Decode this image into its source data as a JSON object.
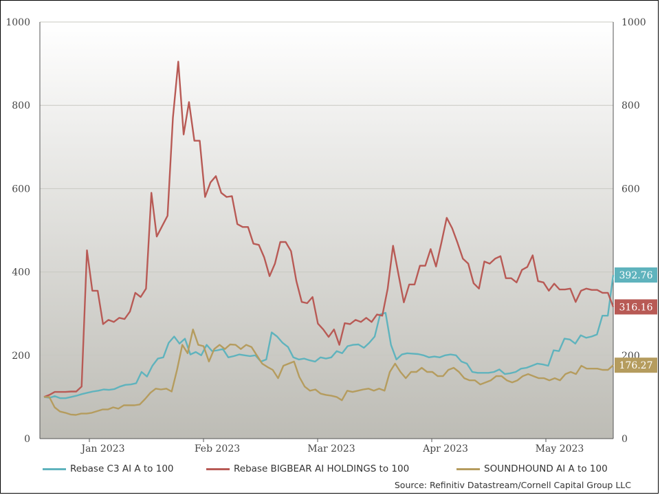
{
  "chart_data": {
    "type": "line",
    "x_labels": [
      "Jan 2023",
      "Feb 2023",
      "Mar 2023",
      "Apr 2023",
      "May 2023"
    ],
    "y_ticks": [
      "0",
      "200",
      "400",
      "600",
      "800",
      "1000"
    ],
    "y2_ticks": [
      "0",
      "200",
      "400",
      "600",
      "800",
      "1000"
    ],
    "ylim": [
      0,
      1000
    ],
    "grid": true,
    "legend_position": "bottom",
    "source": "Source: Refinitiv Datastream/Cornell Capital Group LLC",
    "series": [
      {
        "name": "Rebase C3 AI A to 100",
        "color": "#5fb3bd",
        "end_label": "392.76",
        "values": [
          100,
          98,
          102,
          97,
          97,
          100,
          103,
          107,
          110,
          113,
          115,
          118,
          117,
          119,
          125,
          129,
          130,
          133,
          160,
          149,
          175,
          192,
          195,
          230,
          245,
          228,
          240,
          202,
          208,
          200,
          225,
          210,
          212,
          215,
          195,
          198,
          202,
          200,
          198,
          200,
          185,
          190,
          255,
          245,
          230,
          220,
          195,
          190,
          192,
          188,
          185,
          195,
          192,
          195,
          210,
          205,
          222,
          225,
          226,
          218,
          230,
          245,
          298,
          302,
          225,
          190,
          202,
          205,
          204,
          203,
          200,
          195,
          197,
          195,
          200,
          202,
          200,
          185,
          180,
          160,
          158,
          158,
          158,
          160,
          166,
          155,
          157,
          160,
          168,
          170,
          175,
          180,
          178,
          175,
          212,
          210,
          240,
          238,
          228,
          248,
          242,
          245,
          250,
          295,
          295,
          392.76
        ]
      },
      {
        "name": "Rebase BIGBEAR AI HOLDINGS to 100",
        "color": "#b85a55",
        "end_label": "316.16",
        "values": [
          100,
          105,
          112,
          112,
          112,
          113,
          113,
          125,
          452,
          355,
          355,
          275,
          285,
          280,
          290,
          287,
          305,
          350,
          340,
          360,
          590,
          485,
          510,
          535,
          770,
          905,
          730,
          808,
          715,
          715,
          580,
          615,
          630,
          590,
          580,
          582,
          515,
          508,
          508,
          468,
          465,
          435,
          390,
          420,
          472,
          472,
          450,
          378,
          328,
          325,
          340,
          276,
          262,
          244,
          262,
          225,
          277,
          275,
          285,
          280,
          290,
          280,
          298,
          295,
          360,
          463,
          395,
          327,
          370,
          370,
          415,
          415,
          455,
          413,
          470,
          530,
          505,
          470,
          432,
          420,
          373,
          360,
          425,
          420,
          432,
          438,
          385,
          385,
          375,
          405,
          412,
          440,
          378,
          375,
          355,
          372,
          358,
          358,
          360,
          328,
          355,
          360,
          357,
          357,
          350,
          350,
          316.16
        ]
      },
      {
        "name": "SOUNDHOUND AI A to 100",
        "color": "#b59c5e",
        "end_label": "176.27",
        "values": [
          100,
          100,
          75,
          65,
          62,
          58,
          57,
          60,
          60,
          62,
          66,
          70,
          70,
          75,
          72,
          80,
          80,
          80,
          82,
          95,
          110,
          120,
          118,
          120,
          113,
          165,
          225,
          205,
          262,
          225,
          222,
          185,
          215,
          225,
          215,
          226,
          225,
          215,
          225,
          220,
          200,
          180,
          172,
          165,
          145,
          175,
          180,
          185,
          148,
          125,
          115,
          118,
          108,
          105,
          103,
          100,
          92,
          115,
          112,
          115,
          118,
          120,
          115,
          120,
          115,
          160,
          180,
          160,
          145,
          160,
          160,
          170,
          160,
          160,
          150,
          150,
          165,
          170,
          160,
          145,
          140,
          140,
          130,
          135,
          140,
          150,
          150,
          140,
          135,
          140,
          150,
          155,
          150,
          145,
          145,
          140,
          145,
          140,
          155,
          160,
          155,
          175,
          168,
          168,
          168,
          165,
          165,
          176.27
        ]
      }
    ]
  }
}
